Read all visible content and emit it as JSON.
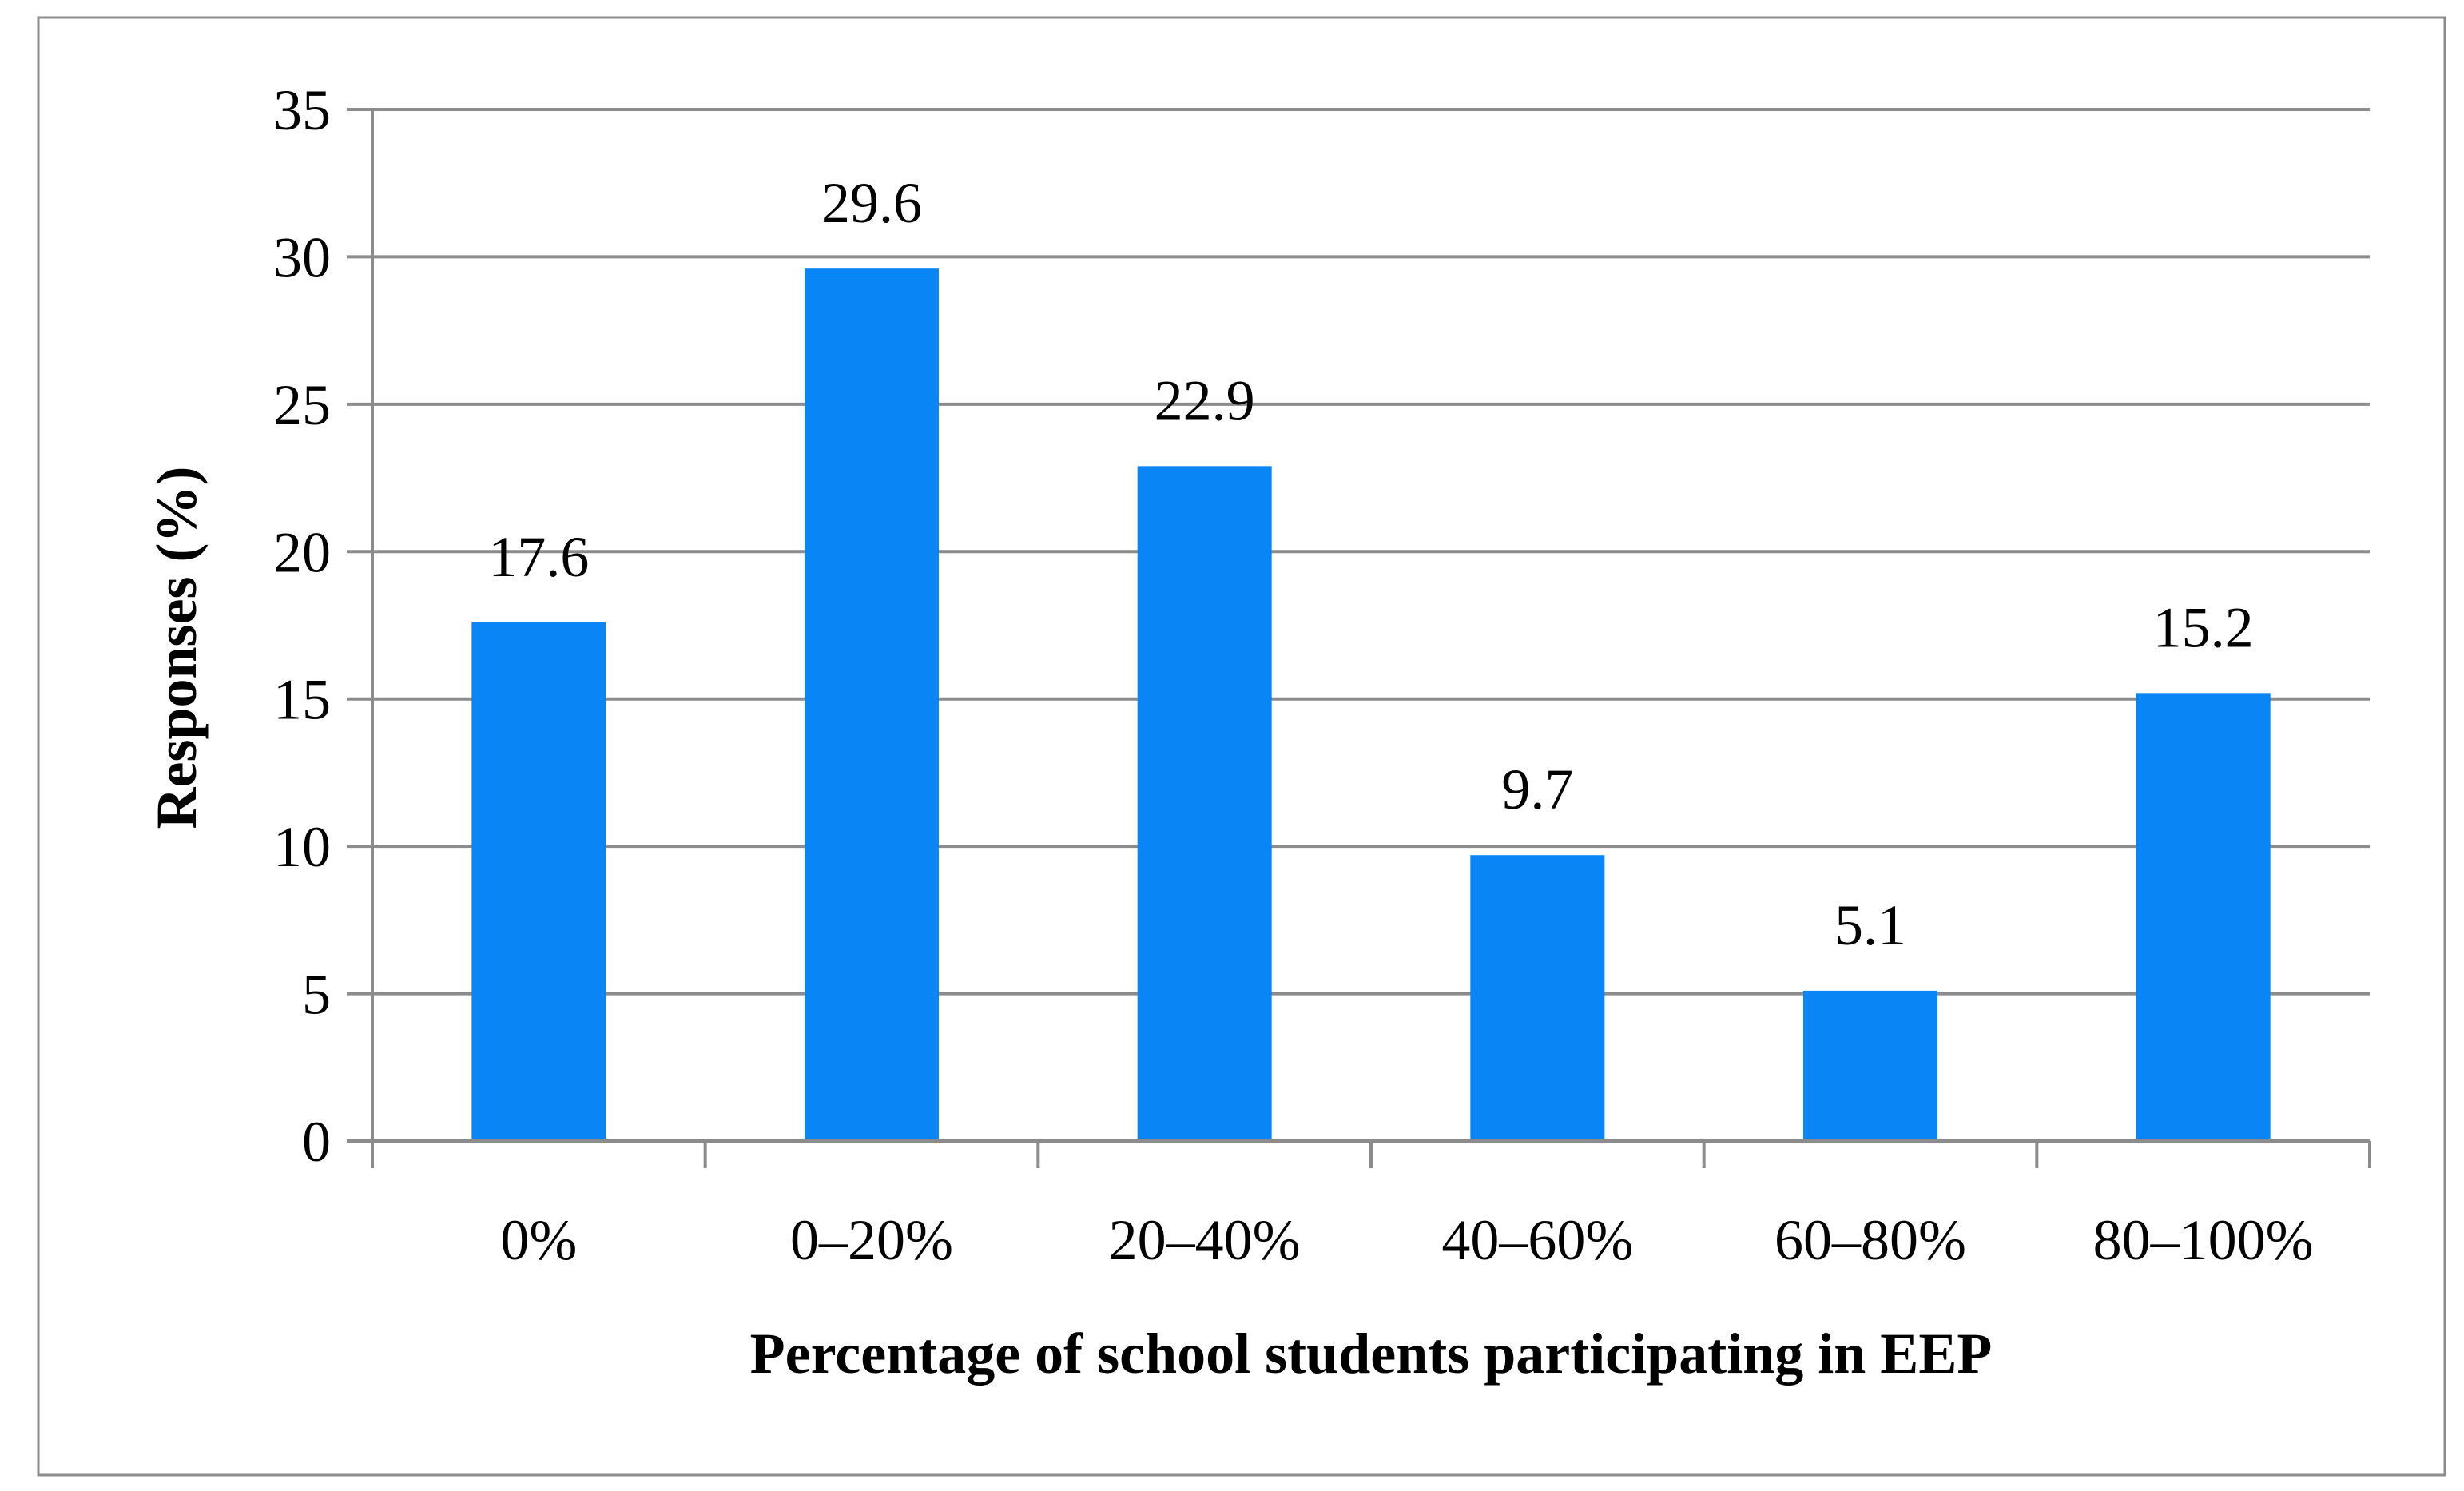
{
  "chart_data": {
    "type": "bar",
    "title": "",
    "xlabel": "Percentage of school students participating in EEP",
    "ylabel": "Responses (%)",
    "categories": [
      "0%",
      "0–20%",
      "20–40%",
      "40–60%",
      "60–80%",
      "80–100%"
    ],
    "values": [
      17.6,
      29.6,
      22.9,
      9.7,
      5.1,
      15.2
    ],
    "data_labels": [
      "17.6",
      "29.6",
      "22.9",
      "9.7",
      "5.1",
      "15.2"
    ],
    "ylim": [
      0,
      35
    ],
    "yticks": [
      0,
      5,
      10,
      15,
      20,
      25,
      30,
      35
    ],
    "grid": true,
    "legend": "none",
    "colors": {
      "bar": "#0A85F5",
      "grid": "#8C8C8C",
      "axis": "#8C8C8C",
      "frame": "#8C8C8C"
    }
  }
}
